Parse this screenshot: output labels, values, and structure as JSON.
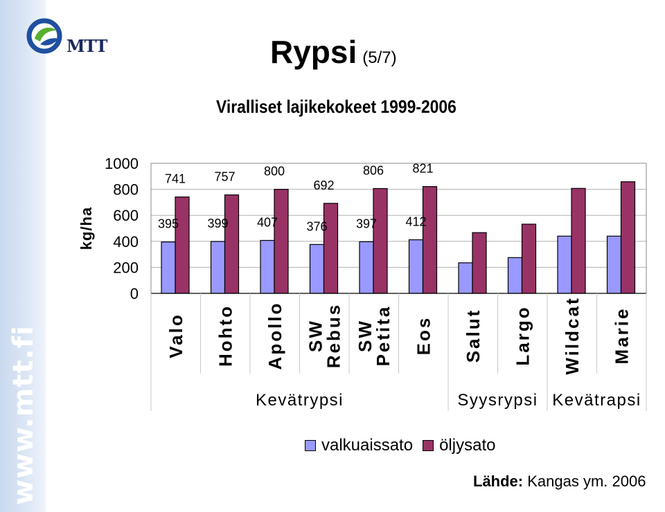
{
  "header": {
    "title": "Rypsi",
    "title_suffix": "(5/7)",
    "subtitle": "Viralliset lajikekokeet 1999-2006"
  },
  "branding": {
    "logo_text": "MTT",
    "side_url": "www.mtt.fi",
    "logo_colors": [
      "#1f4fa0",
      "#58b030"
    ]
  },
  "chart_data": {
    "type": "bar",
    "ylabel": "kg/ha",
    "ylim": [
      0,
      1000
    ],
    "yticks": [
      "0",
      "200",
      "400",
      "600",
      "800",
      "1000"
    ],
    "categories": [
      "Valo",
      "Hohto",
      "Apollo",
      "SW Rebus",
      "SW Petita",
      "Eos",
      "Salut",
      "Largo",
      "Wildcat",
      "Marie"
    ],
    "groups": [
      {
        "label": "Kevätrypsi",
        "count": 6
      },
      {
        "label": "Syysrypsi",
        "count": 2
      },
      {
        "label": "Kevätrapsi",
        "count": 2
      }
    ],
    "series": [
      {
        "name": "valkuaissato",
        "color": "#9999ff",
        "values": [
          395,
          399,
          407,
          376,
          397,
          412,
          235,
          275,
          440,
          440
        ],
        "labels": [
          "395",
          "399",
          "407",
          "376",
          "397",
          "412",
          "",
          "",
          "",
          ""
        ]
      },
      {
        "name": "öljysato",
        "color": "#993366",
        "values": [
          741,
          757,
          800,
          692,
          806,
          821,
          467,
          532,
          807,
          858
        ],
        "labels": [
          "741",
          "757",
          "800",
          "692",
          "806",
          "821",
          "",
          "",
          "",
          ""
        ]
      }
    ],
    "grid": true,
    "legend_position": "bottom"
  },
  "source": {
    "prefix": "Lähde:",
    "text": "Kangas ym. 2006"
  }
}
